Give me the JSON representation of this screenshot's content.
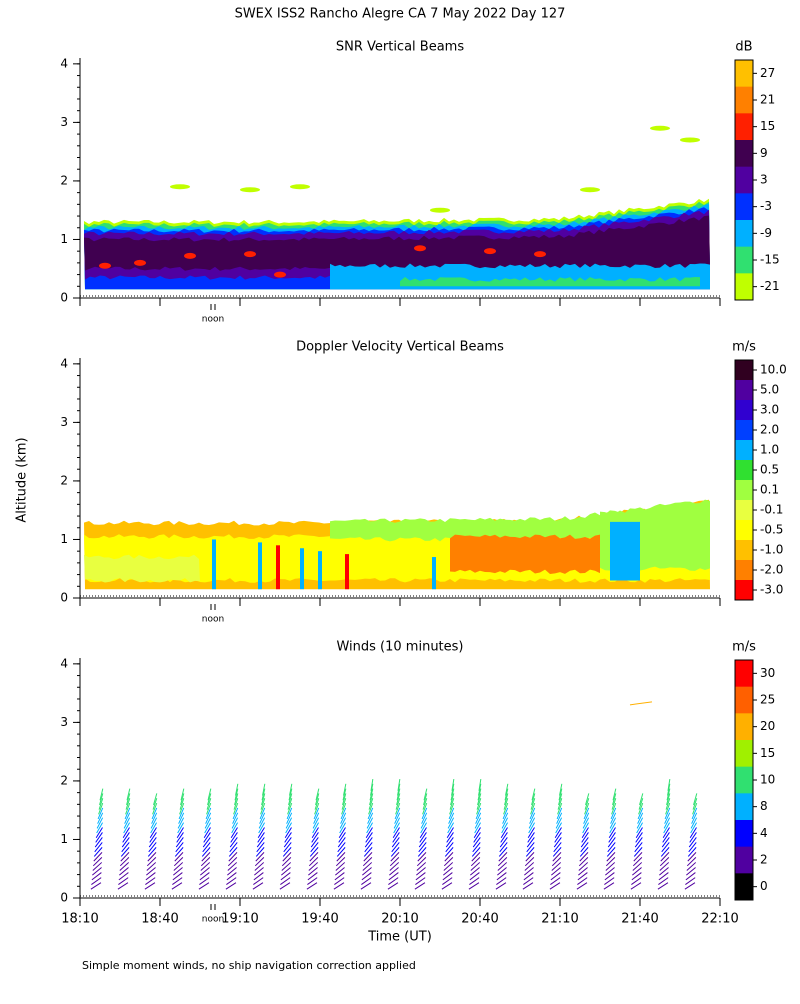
{
  "title": "SWEX ISS2 Rancho Alegre CA   7 May 2022 Day 127",
  "y_label": "Altitude (km)",
  "x_label": "Time (UT)",
  "noon_label": "noon",
  "footnote": "Simple moment winds, no ship navigation correction applied",
  "chart_data": [
    {
      "type": "heatmap",
      "title": "SNR Vertical Beams",
      "unit": "dB",
      "ylim": [
        0,
        4.1
      ],
      "yticks": [
        0,
        1,
        2,
        3,
        4
      ],
      "colorbar": {
        "ticks": [
          27,
          21,
          15,
          9,
          3,
          -3,
          -9,
          -15,
          -21
        ],
        "colors": [
          "#ffc000",
          "#ff8000",
          "#ff2000",
          "#400050",
          "#5000a0",
          "#0030ff",
          "#00b0ff",
          "#30e070",
          "#c0ff00"
        ]
      }
    },
    {
      "type": "heatmap",
      "title": "Doppler Velocity Vertical Beams",
      "unit": "m/s",
      "ylim": [
        0,
        4.1
      ],
      "yticks": [
        0,
        1,
        2,
        3,
        4
      ],
      "colorbar": {
        "ticks": [
          {
            "value": 10,
            "label": "10.0"
          },
          {
            "value": 5,
            "label": "5.0"
          },
          {
            "value": 3,
            "label": "3.0"
          },
          {
            "value": 2,
            "label": "2.0"
          },
          {
            "value": 1,
            "label": "1.0"
          },
          0.5,
          0.1,
          -0.1,
          -0.5,
          {
            "value": -1,
            "label": "-1.0"
          },
          {
            "value": -2,
            "label": "-2.0"
          },
          {
            "value": -3,
            "label": "-3.0"
          }
        ],
        "colors": [
          "#300020",
          "#5000a0",
          "#3000d0",
          "#0040ff",
          "#00b0ff",
          "#30e030",
          "#a0ff40",
          "#e8ff40",
          "#ffff00",
          "#ffc000",
          "#ff8000",
          "#ff0000"
        ]
      }
    },
    {
      "type": "barbs",
      "title": "Winds (10 minutes)",
      "unit": "m/s",
      "ylim": [
        0,
        4.1
      ],
      "yticks": [
        0,
        1,
        2,
        3,
        4
      ],
      "xticks": [
        "18:10",
        "18:40",
        "19:10",
        "19:40",
        "20:10",
        "20:40",
        "21:10",
        "21:40",
        "22:10"
      ],
      "colorbar": {
        "ticks": [
          30,
          25,
          20,
          15,
          10,
          8,
          4,
          2,
          0
        ],
        "colors": [
          "#ff0000",
          "#ff6000",
          "#ffb000",
          "#a0f000",
          "#30e070",
          "#00b0ff",
          "#0000ff",
          "#5000a0",
          "#000000"
        ]
      }
    }
  ]
}
